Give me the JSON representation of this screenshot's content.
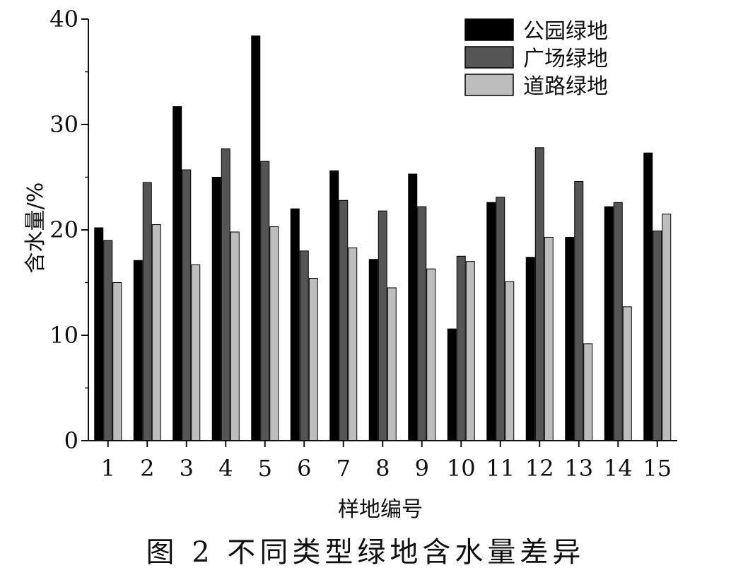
{
  "caption": "图 2   不同类型绿地含水量差异",
  "chart_data": {
    "type": "bar",
    "xlabel": "样地编号",
    "ylabel": "含水量/%",
    "ylim": [
      0,
      40
    ],
    "yticks": [
      0,
      10,
      20,
      30,
      40
    ],
    "categories": [
      "1",
      "2",
      "3",
      "4",
      "5",
      "6",
      "7",
      "8",
      "9",
      "10",
      "11",
      "12",
      "13",
      "14",
      "15"
    ],
    "legend_position": "top-right",
    "series": [
      {
        "name": "公园绿地",
        "color": "#000000",
        "values": [
          20.2,
          17.1,
          31.7,
          25.0,
          38.4,
          22.0,
          25.6,
          17.2,
          25.3,
          10.6,
          22.6,
          17.4,
          19.3,
          22.2,
          27.3
        ]
      },
      {
        "name": "广场绿地",
        "color": "#555555",
        "values": [
          19.0,
          24.5,
          25.7,
          27.7,
          26.5,
          18.0,
          22.8,
          21.8,
          22.2,
          17.5,
          23.1,
          27.8,
          24.6,
          22.6,
          19.9
        ]
      },
      {
        "name": "道路绿地",
        "color": "#bdbdbd",
        "values": [
          15.0,
          20.5,
          16.7,
          19.8,
          20.3,
          15.4,
          18.3,
          14.5,
          16.3,
          17.0,
          15.1,
          19.3,
          9.2,
          12.7,
          21.5
        ]
      }
    ]
  }
}
